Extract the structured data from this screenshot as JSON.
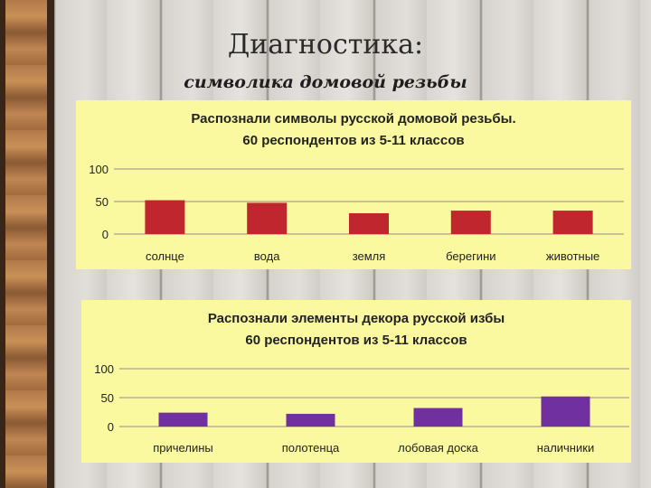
{
  "header": {
    "title": "Диагностика:",
    "subtitle": "символика домовой резьбы"
  },
  "chart_data": [
    {
      "type": "bar",
      "title": "Распознали символы русской домовой резьбы.",
      "subtitle": "60 респондентов из 5-11 классов",
      "categories": [
        "солнце",
        "вода",
        "земля",
        "берегини",
        "животные"
      ],
      "values": [
        52,
        48,
        32,
        36,
        36
      ],
      "ylim": [
        0,
        100
      ],
      "yticks": [
        "100",
        "50",
        "0"
      ],
      "grid": true,
      "color": "#c0262d"
    },
    {
      "type": "bar",
      "title": "Распознали элементы декора русской избы",
      "subtitle": "60 респондентов из 5-11 классов",
      "categories": [
        "причелины",
        "полотенца",
        "лобовая доска",
        "наличники"
      ],
      "values": [
        24,
        22,
        32,
        52
      ],
      "ylim": [
        0,
        100
      ],
      "yticks": [
        "100",
        "50",
        "0"
      ],
      "grid": true,
      "color": "#7030a0"
    }
  ]
}
